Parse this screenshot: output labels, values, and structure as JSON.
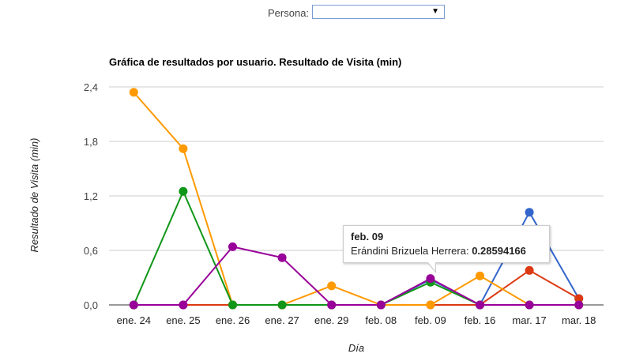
{
  "filter": {
    "label": "Persona:",
    "selected": ""
  },
  "chart_data": {
    "type": "line",
    "title": "Gráfica de resultados por usuario. Resultado de Visita (min)",
    "xlabel": "Día",
    "ylabel": "Resultado de Visita (min)",
    "ylim": [
      0,
      2.4
    ],
    "yticks": [
      "0,0",
      "0,6",
      "1,2",
      "1,8",
      "2,4"
    ],
    "grid": true,
    "categories": [
      "ene. 24",
      "ene. 25",
      "ene. 26",
      "ene. 27",
      "ene. 29",
      "feb. 08",
      "feb. 09",
      "feb. 16",
      "mar. 17",
      "mar. 18"
    ],
    "series": [
      {
        "color": "#3366cc",
        "values": [
          0,
          0,
          0,
          0,
          0,
          0,
          0.28,
          0,
          1.02,
          0.07
        ]
      },
      {
        "color": "#dc3912",
        "values": [
          0,
          0,
          0,
          0,
          0,
          0,
          0,
          0,
          0.38,
          0.07
        ]
      },
      {
        "color": "#ff9900",
        "values": [
          2.34,
          1.72,
          0,
          0,
          0.21,
          0,
          0,
          0.32,
          0,
          0
        ]
      },
      {
        "color": "#109618",
        "values": [
          0,
          1.25,
          0,
          0,
          0,
          0,
          0.25,
          0,
          0,
          0
        ]
      },
      {
        "color": "#990099",
        "values": [
          0,
          0,
          0.64,
          0.52,
          0,
          0,
          0.29,
          0,
          0,
          0
        ]
      }
    ],
    "tooltip": {
      "title": "feb. 09",
      "series_name": "Erándini Brizuela Herrera:",
      "value": "0.28594166"
    }
  }
}
